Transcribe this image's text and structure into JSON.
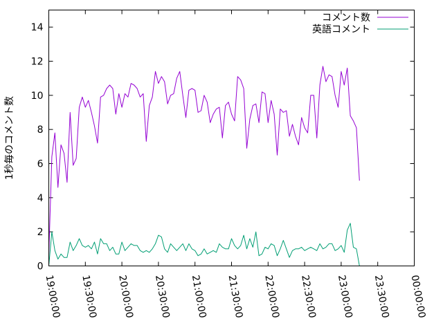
{
  "chart_data": {
    "type": "line",
    "title": "",
    "xlabel": "",
    "ylabel": "1秒毎のコメント数",
    "ylim": [
      0,
      15
    ],
    "xlim": [
      "19:00:00",
      "00:00:00"
    ],
    "y_ticks": [
      "0",
      "2",
      "4",
      "6",
      "8",
      "10",
      "12",
      "14"
    ],
    "x_ticks": [
      "19:00:00",
      "19:30:00",
      "20:00:00",
      "20:30:00",
      "21:00:00",
      "21:30:00",
      "22:00:00",
      "22:30:00",
      "23:00:00",
      "23:30:00",
      "00:00:00"
    ],
    "grid": false,
    "legend_position": "top-right",
    "x_step_minutes": 2.5,
    "series": [
      {
        "name": "コメント数",
        "color": "#9400d3",
        "values": [
          0.6,
          6.4,
          7.8,
          4.6,
          7.1,
          6.6,
          4.9,
          9.0,
          5.9,
          6.3,
          9.3,
          9.9,
          9.3,
          9.7,
          9.0,
          8.2,
          7.2,
          9.9,
          10.0,
          10.4,
          10.6,
          10.4,
          8.9,
          10.1,
          9.3,
          10.1,
          9.9,
          10.7,
          10.6,
          10.4,
          9.9,
          10.1,
          7.3,
          9.4,
          9.9,
          11.4,
          10.7,
          11.1,
          10.8,
          9.5,
          10.0,
          10.1,
          11.0,
          11.4,
          10.0,
          8.7,
          10.3,
          10.4,
          10.3,
          9.0,
          9.1,
          10.0,
          9.6,
          8.4,
          8.9,
          9.2,
          9.3,
          7.5,
          9.4,
          9.6,
          8.9,
          8.5,
          11.1,
          10.9,
          10.4,
          6.9,
          8.6,
          9.4,
          9.5,
          8.4,
          10.2,
          10.1,
          8.4,
          9.7,
          8.9,
          6.5,
          9.2,
          9.0,
          9.1,
          7.6,
          8.3,
          7.6,
          7.1,
          8.7,
          8.1,
          7.8,
          10.0,
          10.0,
          7.5,
          10.6,
          11.7,
          10.8,
          11.2,
          11.1,
          10.0,
          9.3,
          11.4,
          10.6,
          11.6,
          8.8,
          8.5,
          8.1,
          5.0
        ]
      },
      {
        "name": "英語コメント",
        "color": "#009e73",
        "values": [
          0.0,
          2.0,
          0.9,
          0.4,
          0.7,
          0.5,
          0.5,
          1.4,
          0.9,
          1.2,
          1.6,
          1.2,
          1.1,
          1.2,
          1.0,
          1.4,
          0.7,
          1.6,
          1.3,
          1.3,
          0.9,
          1.1,
          0.7,
          0.7,
          1.4,
          0.9,
          1.1,
          1.3,
          1.2,
          1.2,
          0.9,
          0.8,
          0.9,
          0.8,
          1.0,
          1.3,
          1.8,
          1.7,
          1.0,
          0.8,
          1.3,
          1.1,
          0.9,
          1.1,
          1.3,
          0.9,
          1.3,
          1.0,
          0.9,
          0.6,
          0.7,
          1.0,
          0.7,
          0.8,
          0.9,
          0.8,
          1.3,
          1.1,
          1.0,
          1.0,
          1.6,
          1.2,
          1.0,
          1.2,
          1.8,
          1.0,
          1.6,
          1.1,
          2.0,
          0.6,
          0.7,
          1.1,
          1.0,
          1.3,
          1.2,
          0.6,
          1.0,
          1.5,
          1.0,
          0.5,
          0.9,
          1.0,
          1.0,
          1.1,
          0.9,
          1.0,
          1.1,
          1.0,
          0.9,
          1.3,
          1.0,
          1.1,
          1.3,
          1.3,
          0.9,
          1.0,
          1.2,
          0.8,
          2.1,
          2.5,
          1.1,
          1.0,
          0.0
        ]
      }
    ]
  }
}
